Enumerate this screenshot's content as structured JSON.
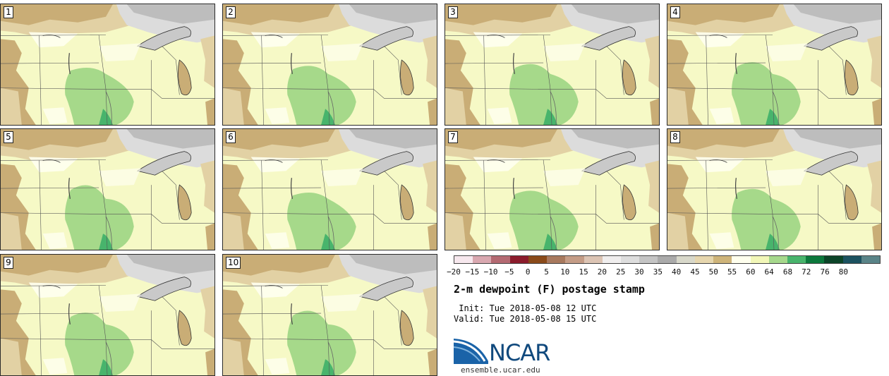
{
  "title": "2-m dewpoint (F) postage stamp",
  "init": " Init: Tue 2018-05-08 12 UTC",
  "valid": "Valid: Tue 2018-05-08 15 UTC",
  "logo": {
    "text": "NCAR",
    "url": "ensemble.ucar.edu"
  },
  "stamps": [
    "1",
    "2",
    "3",
    "4",
    "5",
    "6",
    "7",
    "8",
    "9",
    "10"
  ],
  "colorbar": {
    "tick_labels": [
      "−20",
      "−15",
      "−10",
      "−5",
      "0",
      "5",
      "10",
      "15",
      "20",
      "25",
      "30",
      "35",
      "40",
      "45",
      "50",
      "55",
      "60",
      "64",
      "68",
      "72",
      "76",
      "80"
    ],
    "colors": [
      "#f7e8ee",
      "#d9a8b0",
      "#b46a72",
      "#8b1c2c",
      "#8a4a1a",
      "#a8795e",
      "#c49c86",
      "#dcc4b4",
      "#f0eeee",
      "#dddddd",
      "#c4c4c4",
      "#aaaaaa",
      "#d8d8ca",
      "#e6d6ae",
      "#ceb47a",
      "#ffffee",
      "#f2f7b8",
      "#a6d88c",
      "#48b46c",
      "#0c783c",
      "#0c4428",
      "#1c5260",
      "#5a8488"
    ]
  },
  "map_colors": {
    "background": "#f6f9c6",
    "brown": "#c9ad76",
    "tan": "#e2d1a4",
    "grey": "#bdbdbd",
    "light_grey": "#dcdcdc",
    "green": "#a6d98a",
    "dark_green": "#48b46c",
    "white": "#fffff0",
    "border": "#555555",
    "coast": "#333333"
  }
}
